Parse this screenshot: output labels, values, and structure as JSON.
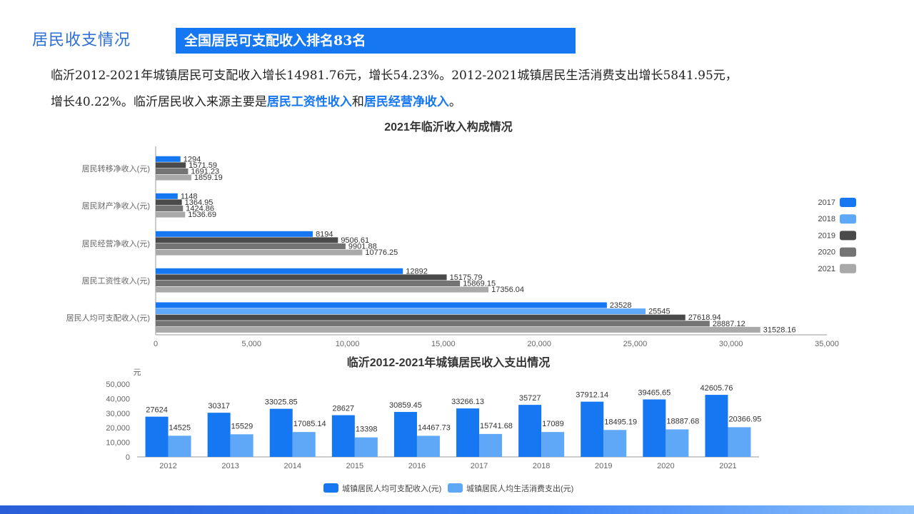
{
  "section_title": "居民收支情况",
  "banner": "全国居民可支配收入排名83名",
  "paragraph": {
    "p1": "临沂2012-2021年城镇居民可支配收入增长14981.76元，增长54.23%。2012-2021城镇居民生活消费支出增长5841.95元，",
    "p2": "增长40.22%。临沂居民收入来源主要是",
    "hl1": "居民工资性收入",
    "p3": "和",
    "hl2": "居民经营净收入",
    "p4": "。"
  },
  "colors": {
    "2017": "#1677f2",
    "2018": "#5ea8f7",
    "2019": "#4a4a4a",
    "2020": "#747474",
    "2021": "#a9a9a9",
    "bar_income": "#1677f2",
    "bar_spend": "#5ea8f7"
  },
  "chart_data": [
    {
      "type": "bar",
      "orientation": "horizontal",
      "title": "2021年临沂收入构成情况",
      "categories": [
        "居民转移净收入(元)",
        "居民财产净收入(元)",
        "居民经营净收入(元)",
        "居民工资性收入(元)",
        "居民人均可支配收入(元)"
      ],
      "series": [
        {
          "name": "2017",
          "values": [
            1294,
            1148,
            8194,
            12892,
            23528
          ]
        },
        {
          "name": "2018",
          "values": [
            null,
            null,
            null,
            null,
            25545
          ]
        },
        {
          "name": "2019",
          "values": [
            1571.59,
            1364.95,
            9506.61,
            15175.79,
            27618.94
          ]
        },
        {
          "name": "2020",
          "values": [
            1691.23,
            1424.86,
            9901.88,
            15869.15,
            28887.12
          ]
        },
        {
          "name": "2021",
          "values": [
            1859.19,
            1536.69,
            10776.25,
            17356.04,
            31528.16
          ]
        }
      ],
      "xlim": [
        0,
        35000
      ],
      "xticks": [
        "0",
        "5,000",
        "10,000",
        "15,000",
        "20,000",
        "25,000",
        "30,000",
        "35,000"
      ],
      "legend_position": "right",
      "grid": false
    },
    {
      "type": "bar",
      "title": "临沂2012-2021年城镇居民收入支出情况",
      "ylabel": "元",
      "categories": [
        "2012",
        "2013",
        "2014",
        "2015",
        "2016",
        "2017",
        "2018",
        "2019",
        "2020",
        "2021"
      ],
      "series": [
        {
          "name": "城镇居民人均可支配收入(元)",
          "values": [
            27624,
            30317,
            33025.85,
            28627,
            30859.45,
            33266.13,
            35727,
            37912.14,
            39465.65,
            42605.76
          ]
        },
        {
          "name": "城镇居民人均生活消费支出(元)",
          "values": [
            14525,
            15529,
            17085.14,
            13398,
            14467.73,
            15741.68,
            17089,
            18495.19,
            18887.68,
            20366.95
          ]
        }
      ],
      "ylim": [
        0,
        50000
      ],
      "yticks": [
        "0",
        "10,000",
        "20,000",
        "30,000",
        "40,000",
        "50,000"
      ],
      "legend_position": "bottom",
      "grid": false
    }
  ]
}
